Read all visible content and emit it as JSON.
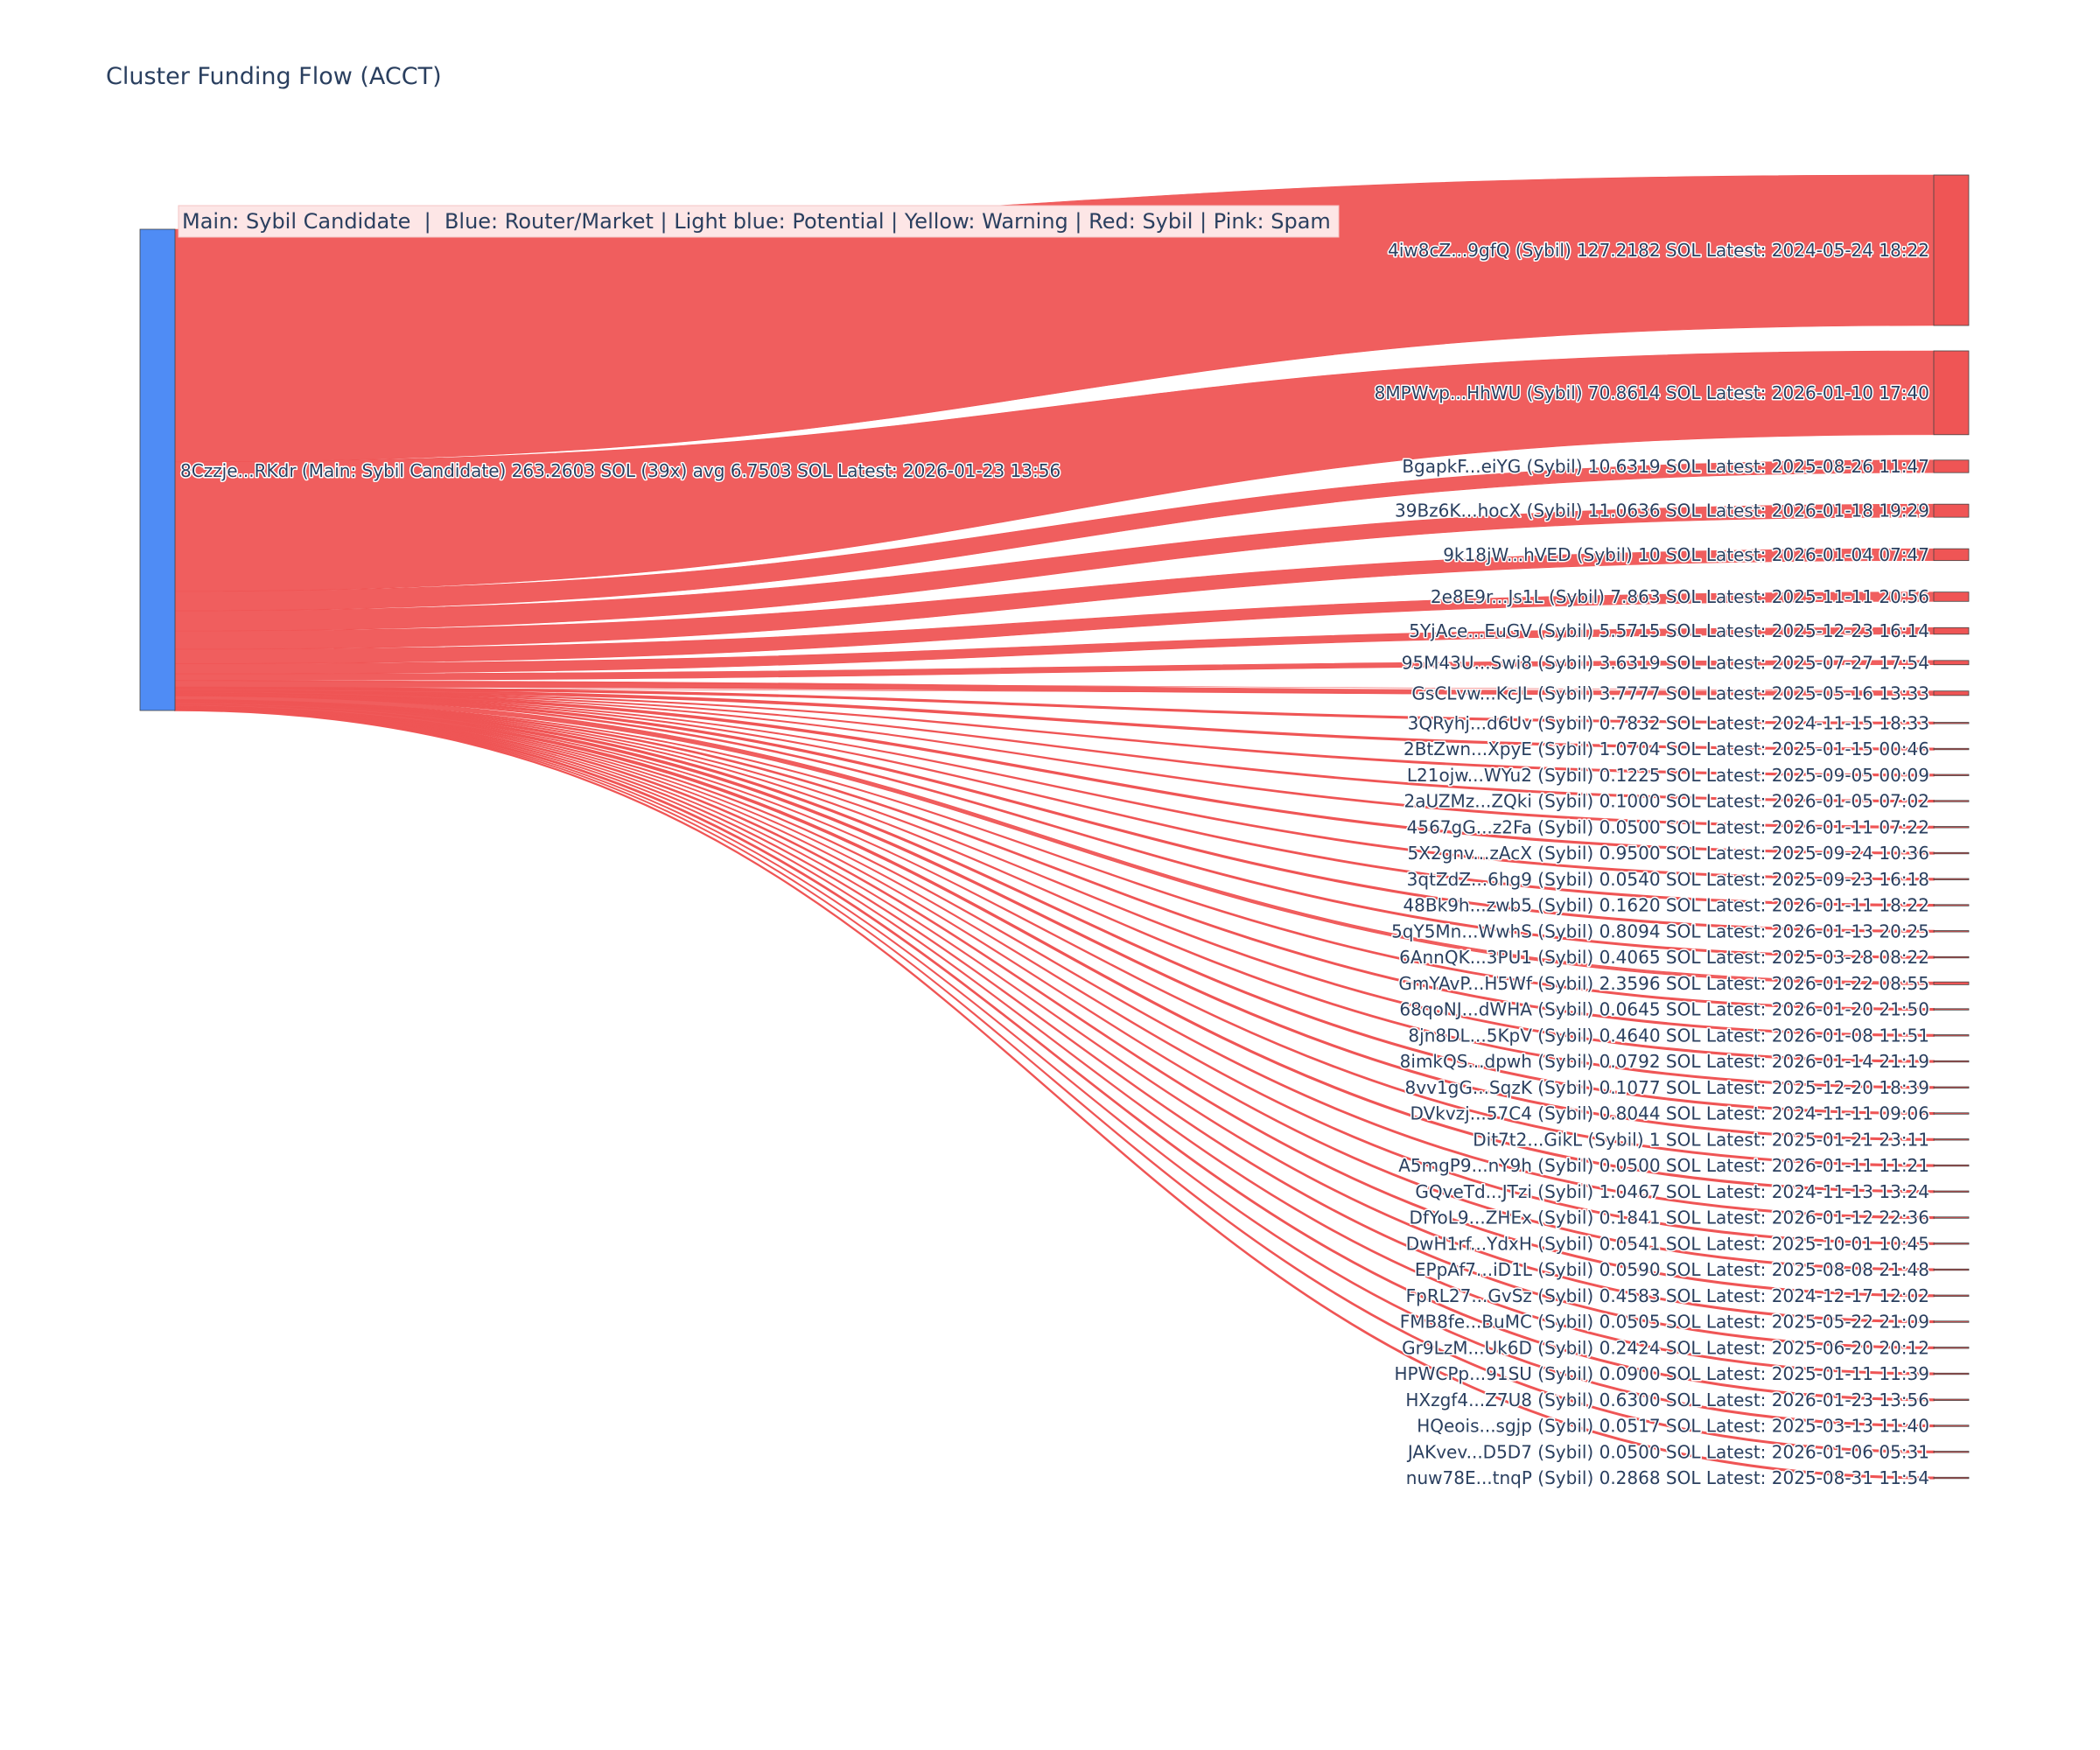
{
  "title": "Cluster Funding Flow (ACCT)",
  "legend_text": "Main: Sybil Candidate  |  Blue: Router/Market | Light blue: Potential | Yellow: Warning | Red: Sybil | Pink: Spam",
  "colors": {
    "source_node": "#4f8cf5",
    "sybil_node": "#ef5555",
    "link": "#ef5555",
    "text": "#2a3f5f",
    "legend_bg": "#fde6e6"
  },
  "chart_data": {
    "type": "sankey",
    "title": "Cluster Funding Flow (ACCT)",
    "source": {
      "label": "8Czzje...RKdr (Main: Sybil Candidate) 263.2603 SOL (39x) avg 6.7503 SOL Latest: 2026-01-23 13:56",
      "total": 263.2603,
      "count": 39,
      "avg": 6.7503
    },
    "targets": [
      {
        "label": "4iw8cZ...9gfQ (Sybil) 127.2182 SOL Latest: 2024-05-24 18:22",
        "value": 127.2182
      },
      {
        "label": "8MPWvp...HhWU (Sybil) 70.8614 SOL Latest: 2026-01-10 17:40",
        "value": 70.8614
      },
      {
        "label": "BgapkF...eiYG (Sybil) 10.6319 SOL Latest: 2025-08-26 11:47",
        "value": 10.6319
      },
      {
        "label": "39Bz6K...hocX (Sybil) 11.0636 SOL Latest: 2026-01-18 19:29",
        "value": 11.0636
      },
      {
        "label": "9k18jW...hVED (Sybil) 10 SOL Latest: 2026-01-04 07:47",
        "value": 10
      },
      {
        "label": "2e8E9r...Js1L (Sybil) 7.863 SOL Latest: 2025-11-11 20:56",
        "value": 7.863
      },
      {
        "label": "5YjAce...EuGV (Sybil) 5.5715 SOL Latest: 2025-12-23 16:14",
        "value": 5.5715
      },
      {
        "label": "95M43U...Swi8 (Sybil) 3.6319 SOL Latest: 2025-07-27 17:54",
        "value": 3.6319
      },
      {
        "label": "GsCLvw...KcJL (Sybil) 3.7777 SOL Latest: 2025-05-16 13:33",
        "value": 3.7777
      },
      {
        "label": "3QRyhj...d6Uv (Sybil) 0.7832 SOL Latest: 2024-11-15 18:33",
        "value": 0.7832
      },
      {
        "label": "2BtZwn...XpyE (Sybil) 1.0704 SOL Latest: 2025-01-15 00:46",
        "value": 1.0704
      },
      {
        "label": "L21ojw...WYu2 (Sybil) 0.1225 SOL Latest: 2025-09-05 00:09",
        "value": 0.1225
      },
      {
        "label": "2aUZMz...ZQki (Sybil) 0.1000 SOL Latest: 2026-01-05 07:02",
        "value": 0.1
      },
      {
        "label": "4567gG...z2Fa (Sybil) 0.0500 SOL Latest: 2026-01-11 07:22",
        "value": 0.05
      },
      {
        "label": "5X2gnv...zAcX (Sybil) 0.9500 SOL Latest: 2025-09-24 10:36",
        "value": 0.95
      },
      {
        "label": "3qtZdZ...6hg9 (Sybil) 0.0540 SOL Latest: 2025-09-23 16:18",
        "value": 0.054
      },
      {
        "label": "48Bk9h...zwb5 (Sybil) 0.1620 SOL Latest: 2026-01-11 18:22",
        "value": 0.162
      },
      {
        "label": "5qY5Mn...WwhS (Sybil) 0.8094 SOL Latest: 2026-01-13 20:25",
        "value": 0.8094
      },
      {
        "label": "6AnnQK...3PU1 (Sybil) 0.4065 SOL Latest: 2025-03-28 08:22",
        "value": 0.4065
      },
      {
        "label": "GmYAvP...H5Wf (Sybil) 2.3596 SOL Latest: 2026-01-22 08:55",
        "value": 2.3596
      },
      {
        "label": "68qoNJ...dWHA (Sybil) 0.0645 SOL Latest: 2026-01-20 21:50",
        "value": 0.0645
      },
      {
        "label": "8jn8DL...5KpV (Sybil) 0.4640 SOL Latest: 2026-01-08 11:51",
        "value": 0.464
      },
      {
        "label": "8imkQS...dpwh (Sybil) 0.0792 SOL Latest: 2026-01-14 21:19",
        "value": 0.0792
      },
      {
        "label": "8vv1gG...SqzK (Sybil) 0.1077 SOL Latest: 2025-12-20 18:39",
        "value": 0.1077
      },
      {
        "label": "DVkvzj...57C4 (Sybil) 0.8044 SOL Latest: 2024-11-11 09:06",
        "value": 0.8044
      },
      {
        "label": "Dit7t2...GikL (Sybil) 1 SOL Latest: 2025-01-21 23:11",
        "value": 1
      },
      {
        "label": "A5mgP9...nY9h (Sybil) 0.0500 SOL Latest: 2026-01-11 11:21",
        "value": 0.05
      },
      {
        "label": "GQveTd...JTzi (Sybil) 1.0467 SOL Latest: 2024-11-13 13:24",
        "value": 1.0467
      },
      {
        "label": "DfYoL9...ZHEx (Sybil) 0.1841 SOL Latest: 2026-01-12 22:36",
        "value": 0.1841
      },
      {
        "label": "DwH1rf...YdxH (Sybil) 0.0541 SOL Latest: 2025-10-01 10:45",
        "value": 0.0541
      },
      {
        "label": "EPpAf7...iD1L (Sybil) 0.0590 SOL Latest: 2025-08-08 21:48",
        "value": 0.059
      },
      {
        "label": "FpRL27...GvSz (Sybil) 0.4583 SOL Latest: 2024-12-17 12:02",
        "value": 0.4583
      },
      {
        "label": "FMB8fe...BuMC (Sybil) 0.0505 SOL Latest: 2025-05-22 21:09",
        "value": 0.0505
      },
      {
        "label": "Gr9LzM...Uk6D (Sybil) 0.2424 SOL Latest: 2025-06-20 20:12",
        "value": 0.2424
      },
      {
        "label": "HPWCPp...91SU (Sybil) 0.0900 SOL Latest: 2025-01-11 11:39",
        "value": 0.09
      },
      {
        "label": "HXzgf4...Z7U8 (Sybil) 0.6300 SOL Latest: 2026-01-23 13:56",
        "value": 0.63
      },
      {
        "label": "HQeois...sgjp (Sybil) 0.0517 SOL Latest: 2025-03-13 11:40",
        "value": 0.0517
      },
      {
        "label": "JAKvev...D5D7 (Sybil) 0.0500 SOL Latest: 2026-01-06 05:31",
        "value": 0.05
      },
      {
        "label": "nuw78E...tnqP (Sybil) 0.2868 SOL Latest: 2025-08-31 11:54",
        "value": 0.2868
      }
    ]
  }
}
